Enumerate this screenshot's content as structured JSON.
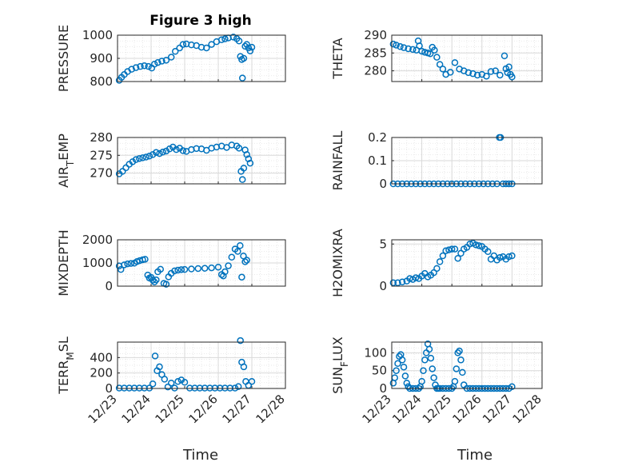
{
  "figure_title": "Figure 3 high",
  "marker_color": "#0072bd",
  "chart_data": [
    {
      "type": "scatter",
      "ylabel": "PRESSURE",
      "yticks": [
        "800",
        "900",
        "1000"
      ],
      "ylim": [
        800,
        1000
      ],
      "xlim": [
        0,
        5
      ],
      "x": [
        0.05,
        0.12,
        0.2,
        0.3,
        0.42,
        0.55,
        0.68,
        0.8,
        0.92,
        1.02,
        1.1,
        1.2,
        1.32,
        1.45,
        1.6,
        1.72,
        1.85,
        1.95,
        2.05,
        2.2,
        2.35,
        2.5,
        2.65,
        2.8,
        2.95,
        3.1,
        3.2,
        3.3,
        3.45,
        3.55,
        3.62,
        3.66,
        3.7,
        3.72,
        3.76,
        3.8,
        3.85,
        3.9,
        3.95,
        4.0
      ],
      "y": [
        805,
        818,
        830,
        843,
        853,
        860,
        865,
        868,
        865,
        858,
        875,
        882,
        888,
        892,
        905,
        930,
        945,
        960,
        962,
        958,
        955,
        948,
        945,
        960,
        972,
        980,
        984,
        988,
        992,
        985,
        975,
        908,
        895,
        815,
        900,
        952,
        960,
        945,
        932,
        948
      ]
    },
    {
      "type": "scatter",
      "ylabel": "THETA",
      "yticks": [
        "280",
        "285",
        "290"
      ],
      "ylim": [
        277,
        290
      ],
      "xlim": [
        0,
        5
      ],
      "x": [
        0.05,
        0.15,
        0.28,
        0.4,
        0.55,
        0.7,
        0.82,
        0.88,
        0.92,
        1.0,
        1.1,
        1.2,
        1.28,
        1.35,
        1.42,
        1.5,
        1.6,
        1.7,
        1.8,
        1.95,
        2.1,
        2.25,
        2.4,
        2.55,
        2.7,
        2.85,
        3.0,
        3.15,
        3.3,
        3.45,
        3.6,
        3.75,
        3.8,
        3.85,
        3.9,
        3.95,
        4.0
      ],
      "y": [
        287.5,
        287.2,
        286.8,
        286.5,
        286.2,
        286,
        285.8,
        288.4,
        287,
        285.5,
        285.2,
        285,
        284.8,
        286.6,
        285.8,
        283.8,
        281.8,
        280.5,
        279,
        279.6,
        282.3,
        280.5,
        280,
        279.5,
        279.2,
        278.8,
        279,
        278.5,
        279.8,
        280,
        278.8,
        284.2,
        280.6,
        279.5,
        281.1,
        279,
        278.3
      ]
    },
    {
      "type": "scatter",
      "ylabel": "AIR_TEMP",
      "yticks": [
        "270",
        "275",
        "280"
      ],
      "ylim": [
        267,
        280
      ],
      "xlim": [
        0,
        5
      ],
      "x": [
        0.05,
        0.15,
        0.25,
        0.35,
        0.45,
        0.55,
        0.65,
        0.75,
        0.85,
        0.95,
        1.05,
        1.15,
        1.25,
        1.35,
        1.45,
        1.55,
        1.65,
        1.75,
        1.85,
        1.95,
        2.05,
        2.2,
        2.35,
        2.5,
        2.65,
        2.8,
        2.95,
        3.1,
        3.25,
        3.4,
        3.55,
        3.62,
        3.68,
        3.72,
        3.76,
        3.8,
        3.85,
        3.9,
        3.95
      ],
      "y": [
        269.8,
        270.5,
        271.5,
        272.5,
        273.2,
        273.8,
        274.1,
        274.3,
        274.5,
        274.8,
        275.2,
        275.8,
        275.5,
        275.9,
        276.2,
        276.8,
        277.3,
        276.6,
        277,
        276.3,
        276.1,
        276.6,
        276.9,
        276.8,
        276.4,
        277,
        277.3,
        277.6,
        277.2,
        277.9,
        277.6,
        277,
        270.5,
        268.2,
        271.4,
        276.5,
        275.2,
        274,
        272.8
      ]
    },
    {
      "type": "scatter",
      "ylabel": "RAINFALL",
      "yticks": [
        "0",
        "0.1",
        "0.2"
      ],
      "ylim": [
        0,
        0.2
      ],
      "xlim": [
        0,
        5
      ],
      "x": [
        0.05,
        0.2,
        0.35,
        0.5,
        0.65,
        0.8,
        0.95,
        1.1,
        1.25,
        1.4,
        1.55,
        1.7,
        1.85,
        2.0,
        2.15,
        2.3,
        2.45,
        2.6,
        2.75,
        2.9,
        3.05,
        3.2,
        3.35,
        3.5,
        3.58,
        3.62,
        3.7,
        3.8,
        3.9,
        4.0
      ],
      "y": [
        0,
        0,
        0,
        0,
        0,
        0,
        0,
        0,
        0,
        0,
        0,
        0,
        0,
        0,
        0,
        0,
        0,
        0,
        0,
        0,
        0,
        0,
        0,
        0,
        0.2,
        0.2,
        0,
        0,
        0,
        0
      ]
    },
    {
      "type": "scatter",
      "ylabel": "MIXDEPTH",
      "yticks": [
        "0",
        "1000",
        "2000"
      ],
      "ylim": [
        0,
        2000
      ],
      "xlim": [
        0,
        5
      ],
      "x": [
        0.05,
        0.1,
        0.2,
        0.3,
        0.4,
        0.5,
        0.58,
        0.66,
        0.75,
        0.82,
        0.9,
        0.95,
        1.0,
        1.05,
        1.1,
        1.15,
        1.2,
        1.28,
        1.38,
        1.45,
        1.52,
        1.6,
        1.7,
        1.8,
        1.9,
        2.0,
        2.2,
        2.4,
        2.6,
        2.8,
        3.0,
        3.1,
        3.15,
        3.2,
        3.3,
        3.4,
        3.5,
        3.58,
        3.65,
        3.7,
        3.75,
        3.8,
        3.85
      ],
      "y": [
        870,
        720,
        920,
        960,
        980,
        990,
        1060,
        1100,
        1140,
        1160,
        480,
        350,
        380,
        260,
        180,
        270,
        620,
        730,
        120,
        80,
        400,
        550,
        660,
        690,
        710,
        720,
        740,
        760,
        770,
        790,
        820,
        500,
        440,
        620,
        880,
        1250,
        1600,
        1500,
        1750,
        390,
        1300,
        1050,
        1120
      ]
    },
    {
      "type": "scatter",
      "ylabel": "H2OMIXRA",
      "yticks": [
        "0",
        "5"
      ],
      "ylim": [
        0,
        5.5
      ],
      "xlim": [
        0,
        5
      ],
      "x": [
        0.05,
        0.2,
        0.35,
        0.5,
        0.6,
        0.7,
        0.8,
        0.9,
        1.0,
        1.1,
        1.2,
        1.3,
        1.4,
        1.5,
        1.6,
        1.7,
        1.8,
        1.9,
        2.0,
        2.1,
        2.2,
        2.3,
        2.4,
        2.5,
        2.6,
        2.7,
        2.8,
        2.9,
        3.0,
        3.1,
        3.2,
        3.3,
        3.4,
        3.5,
        3.6,
        3.7,
        3.8,
        3.9,
        4.0
      ],
      "y": [
        0.4,
        0.4,
        0.5,
        0.6,
        0.9,
        0.8,
        1,
        0.9,
        1.2,
        1.5,
        1.1,
        1.3,
        1.6,
        2.1,
        2.9,
        3.6,
        4.2,
        4.3,
        4.4,
        4.4,
        3.3,
        3.9,
        4.4,
        4.6,
        5,
        5.1,
        4.9,
        4.8,
        4.7,
        4.4,
        4.1,
        3.2,
        3.6,
        3.1,
        3.4,
        3.5,
        3.2,
        3.5,
        3.6
      ]
    },
    {
      "type": "scatter",
      "ylabel": "TERR_MSL",
      "yticks": [
        "0",
        "200",
        "400"
      ],
      "ylim": [
        0,
        600
      ],
      "xlim": [
        0,
        5
      ],
      "x": [
        0.05,
        0.2,
        0.35,
        0.5,
        0.65,
        0.8,
        0.95,
        1.05,
        1.12,
        1.18,
        1.25,
        1.32,
        1.4,
        1.5,
        1.6,
        1.7,
        1.8,
        1.9,
        2.0,
        2.15,
        2.3,
        2.45,
        2.6,
        2.75,
        2.9,
        3.05,
        3.2,
        3.35,
        3.5,
        3.6,
        3.66,
        3.7,
        3.76,
        3.82,
        3.9,
        4.0
      ],
      "y": [
        5,
        5,
        5,
        5,
        5,
        5,
        5,
        60,
        420,
        230,
        280,
        180,
        120,
        20,
        70,
        5,
        90,
        110,
        80,
        5,
        5,
        5,
        5,
        5,
        5,
        5,
        5,
        5,
        5,
        25,
        620,
        340,
        280,
        90,
        40,
        90
      ]
    },
    {
      "type": "scatter",
      "ylabel": "SUN_FLUX",
      "yticks": [
        "0",
        "50",
        "100"
      ],
      "ylim": [
        0,
        130
      ],
      "xlim": [
        0,
        5
      ],
      "x": [
        0.05,
        0.1,
        0.15,
        0.2,
        0.25,
        0.3,
        0.35,
        0.4,
        0.45,
        0.5,
        0.55,
        0.6,
        0.7,
        0.8,
        0.9,
        0.95,
        1.0,
        1.05,
        1.1,
        1.15,
        1.2,
        1.25,
        1.3,
        1.35,
        1.4,
        1.45,
        1.5,
        1.55,
        1.6,
        1.7,
        1.8,
        1.9,
        2.0,
        2.05,
        2.1,
        2.15,
        2.2,
        2.25,
        2.3,
        2.35,
        2.4,
        2.5,
        2.6,
        2.7,
        2.8,
        2.9,
        3.0,
        3.1,
        3.2,
        3.3,
        3.4,
        3.5,
        3.6,
        3.7,
        3.8,
        3.9,
        4.0
      ],
      "y": [
        15,
        30,
        50,
        70,
        90,
        95,
        80,
        60,
        35,
        15,
        5,
        0,
        0,
        0,
        0,
        5,
        20,
        50,
        80,
        100,
        125,
        110,
        85,
        55,
        30,
        10,
        0,
        0,
        0,
        0,
        0,
        0,
        0,
        5,
        20,
        55,
        100,
        105,
        80,
        45,
        10,
        0,
        0,
        0,
        0,
        0,
        0,
        0,
        0,
        0,
        0,
        0,
        0,
        0,
        0,
        0,
        5
      ]
    }
  ],
  "xticks": [
    "12/23",
    "12/24",
    "12/25",
    "12/26",
    "12/27",
    "12/28"
  ],
  "xlabel": "Time"
}
